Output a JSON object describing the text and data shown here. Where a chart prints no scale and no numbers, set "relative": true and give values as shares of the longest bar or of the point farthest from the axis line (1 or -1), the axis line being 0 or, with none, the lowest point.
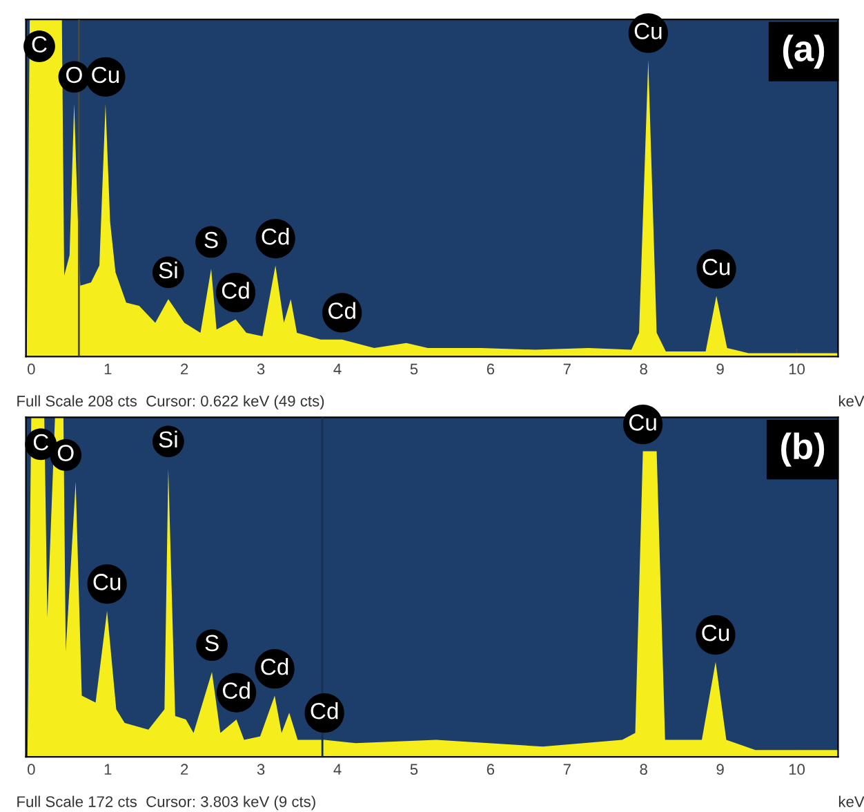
{
  "chart_data": [
    {
      "type": "area",
      "title": "(a)",
      "xlabel": "keV",
      "relative": true,
      "xlim": [
        -0.07,
        10.54
      ],
      "xticks": [
        0,
        1,
        2,
        3,
        4,
        5,
        6,
        7,
        8,
        9,
        10
      ],
      "grid": false,
      "series": [
        {
          "color": "#f5ee1c",
          "x": [
            -0.06,
            -0.02,
            0.4,
            0.43,
            0.5,
            0.56,
            0.61,
            0.64,
            0.78,
            0.89,
            0.97,
            1.03,
            1.1,
            1.24,
            1.41,
            1.62,
            1.79,
            2.0,
            2.21,
            2.35,
            2.42,
            2.67,
            2.81,
            3.02,
            3.19,
            3.3,
            3.39,
            3.47,
            3.78,
            4.06,
            4.48,
            4.9,
            5.18,
            5.88,
            6.58,
            7.28,
            7.84,
            7.94,
            8.06,
            8.17,
            8.29,
            8.81,
            8.95,
            9.09,
            9.37,
            10.54
          ],
          "values": [
            0,
            1,
            1,
            0.24,
            0.3,
            0.75,
            0.4,
            0.21,
            0.22,
            0.27,
            0.75,
            0.4,
            0.25,
            0.16,
            0.15,
            0.1,
            0.17,
            0.1,
            0.07,
            0.26,
            0.08,
            0.11,
            0.07,
            0.06,
            0.27,
            0.1,
            0.17,
            0.07,
            0.05,
            0.05,
            0.025,
            0.04,
            0.025,
            0.025,
            0.02,
            0.025,
            0.02,
            0.07,
            0.88,
            0.07,
            0.015,
            0.015,
            0.18,
            0.025,
            0.01,
            0.01
          ]
        }
      ],
      "ref_lines": [
        {
          "axis": "x",
          "value": 0.622,
          "color": "#4a4a30"
        }
      ],
      "annotations": [
        {
          "text": "C",
          "x": -0.02,
          "y": 1
        },
        {
          "text": "O",
          "x": 0.56,
          "y": 0.75
        },
        {
          "text": "Cu",
          "x": 0.97,
          "y": 0.75
        },
        {
          "text": "Si",
          "x": 1.79,
          "y": 0.17
        },
        {
          "text": "S",
          "x": 2.35,
          "y": 0.26
        },
        {
          "text": "Cd",
          "x": 2.67,
          "y": 0.11
        },
        {
          "text": "Cd",
          "x": 3.19,
          "y": 0.27
        },
        {
          "text": "Cd",
          "x": 4.06,
          "y": 0.05
        },
        {
          "text": "Cu",
          "x": 8.06,
          "y": 0.88
        },
        {
          "text": "Cu",
          "x": 8.95,
          "y": 0.18
        },
        "Full Scale 208 cts  Cursor: 0.622 keV (49 cts)"
      ]
    },
    {
      "type": "area",
      "title": "(b)",
      "xlabel": "keV",
      "relative": true,
      "xlim": [
        -0.07,
        10.54
      ],
      "xticks": [
        0,
        1,
        2,
        3,
        4,
        5,
        6,
        7,
        8,
        9,
        10
      ],
      "grid": false,
      "series": [
        {
          "color": "#f5ee1c",
          "x": [
            -0.05,
            0.0,
            0.17,
            0.21,
            0.31,
            0.42,
            0.45,
            0.58,
            0.66,
            0.84,
            0.99,
            1.11,
            1.22,
            1.53,
            1.74,
            1.79,
            1.88,
            2.02,
            2.12,
            2.36,
            2.47,
            2.68,
            2.78,
            2.99,
            3.18,
            3.27,
            3.37,
            3.48,
            3.83,
            4.24,
            5.29,
            6.68,
            7.72,
            7.89,
            7.99,
            8.17,
            8.28,
            8.76,
            8.94,
            9.08,
            9.46,
            10.54
          ],
          "values": [
            0,
            1,
            1,
            0.41,
            1,
            1,
            0.31,
            0.81,
            0.18,
            0.16,
            0.43,
            0.14,
            0.1,
            0.08,
            0.14,
            0.85,
            0.12,
            0.11,
            0.07,
            0.25,
            0.07,
            0.11,
            0.05,
            0.06,
            0.18,
            0.07,
            0.13,
            0.05,
            0.05,
            0.04,
            0.05,
            0.03,
            0.05,
            0.07,
            0.9,
            0.9,
            0.05,
            0.05,
            0.28,
            0.05,
            0.02,
            0.02
          ]
        }
      ],
      "ref_lines": [
        {
          "axis": "x",
          "value": 3.803,
          "color": "#18304f"
        }
      ],
      "annotations": [
        {
          "text": "C",
          "x": 0.0,
          "y": 1
        },
        {
          "text": "O",
          "x": 0.45,
          "y": 0.81
        },
        {
          "text": "Si",
          "x": 1.79,
          "y": 0.85
        },
        {
          "text": "Cu",
          "x": 0.99,
          "y": 0.43
        },
        {
          "text": "S",
          "x": 2.36,
          "y": 0.25
        },
        {
          "text": "Cd",
          "x": 2.68,
          "y": 0.11
        },
        {
          "text": "Cd",
          "x": 3.18,
          "y": 0.18
        },
        {
          "text": "Cd",
          "x": 3.83,
          "y": 0.05
        },
        {
          "text": "Cu",
          "x": 7.99,
          "y": 0.9
        },
        {
          "text": "Cu",
          "x": 8.94,
          "y": 0.28
        },
        "Full Scale 172 cts  Cursor: 3.803 keV (9 cts)"
      ]
    }
  ]
}
